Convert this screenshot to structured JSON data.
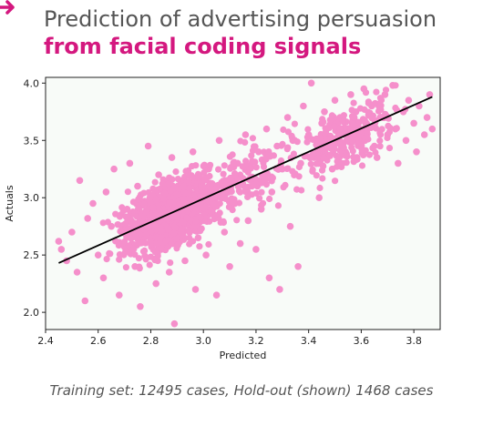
{
  "header": {
    "title_line1": "Prediction of advertising persuasion",
    "title_line2": "from facial coding signals"
  },
  "caption": "Training set: 12495 cases, Hold-out (shown) 1468 cases",
  "colors": {
    "accent": "#d4187f",
    "point": "#f58fcb",
    "fit_line": "#000000",
    "plot_background": "#f8fbf8",
    "title_gray": "#555555"
  },
  "chart_data": {
    "type": "scatter",
    "title": "",
    "xlabel": "Predicted",
    "ylabel": "Actuals",
    "xlim": [
      2.4,
      3.9
    ],
    "ylim": [
      1.85,
      4.05
    ],
    "xticks": [
      "2.4",
      "2.6",
      "2.8",
      "3.0",
      "3.2",
      "3.4",
      "3.6",
      "3.8"
    ],
    "yticks": [
      "2.0",
      "2.5",
      "3.0",
      "3.5",
      "4.0"
    ],
    "grid": false,
    "legend": "none",
    "fit_line": {
      "x": [
        2.45,
        3.87
      ],
      "y": [
        2.43,
        3.88
      ]
    },
    "n_points_shown": 1468,
    "points": [
      [
        2.45,
        2.62
      ],
      [
        2.46,
        2.55
      ],
      [
        2.48,
        2.45
      ],
      [
        2.5,
        2.7
      ],
      [
        2.52,
        2.35
      ],
      [
        2.53,
        3.15
      ],
      [
        2.55,
        2.1
      ],
      [
        2.56,
        2.82
      ],
      [
        2.58,
        2.95
      ],
      [
        2.6,
        2.5
      ],
      [
        2.62,
        2.3
      ],
      [
        2.63,
        3.05
      ],
      [
        2.65,
        2.75
      ],
      [
        2.66,
        3.25
      ],
      [
        2.68,
        2.15
      ],
      [
        2.7,
        2.6
      ],
      [
        2.71,
        2.9
      ],
      [
        2.72,
        3.3
      ],
      [
        2.74,
        2.4
      ],
      [
        2.75,
        3.1
      ],
      [
        2.76,
        2.05
      ],
      [
        2.78,
        2.7
      ],
      [
        2.79,
        3.45
      ],
      [
        2.8,
        2.85
      ],
      [
        2.82,
        2.25
      ],
      [
        2.83,
        3.2
      ],
      [
        2.84,
        2.55
      ],
      [
        2.86,
        3.0
      ],
      [
        2.87,
        2.35
      ],
      [
        2.88,
        3.35
      ],
      [
        2.89,
        1.9
      ],
      [
        2.9,
        2.75
      ],
      [
        2.92,
        3.15
      ],
      [
        2.93,
        2.45
      ],
      [
        2.94,
        2.95
      ],
      [
        2.96,
        3.4
      ],
      [
        2.97,
        2.2
      ],
      [
        2.98,
        2.65
      ],
      [
        3.0,
        3.05
      ],
      [
        3.01,
        2.5
      ],
      [
        3.02,
        3.25
      ],
      [
        3.04,
        2.85
      ],
      [
        3.05,
        2.15
      ],
      [
        3.06,
        3.5
      ],
      [
        3.08,
        2.7
      ],
      [
        3.09,
        3.1
      ],
      [
        3.1,
        2.4
      ],
      [
        3.12,
        2.95
      ],
      [
        3.13,
        3.3
      ],
      [
        3.14,
        2.6
      ],
      [
        3.16,
        3.55
      ],
      [
        3.17,
        2.8
      ],
      [
        3.18,
        3.15
      ],
      [
        3.2,
        2.55
      ],
      [
        3.21,
        3.4
      ],
      [
        3.22,
        2.9
      ],
      [
        3.24,
        3.6
      ],
      [
        3.25,
        2.3
      ],
      [
        3.26,
        3.05
      ],
      [
        3.28,
        3.45
      ],
      [
        3.29,
        2.2
      ],
      [
        3.3,
        3.25
      ],
      [
        3.32,
        3.7
      ],
      [
        3.33,
        2.75
      ],
      [
        3.34,
        3.5
      ],
      [
        3.36,
        2.4
      ],
      [
        3.37,
        3.3
      ],
      [
        3.38,
        3.8
      ],
      [
        3.4,
        3.55
      ],
      [
        3.41,
        4.0
      ],
      [
        3.42,
        3.35
      ],
      [
        3.44,
        3.0
      ],
      [
        3.45,
        3.65
      ],
      [
        3.46,
        3.75
      ],
      [
        3.48,
        3.45
      ],
      [
        3.49,
        3.25
      ],
      [
        3.5,
        3.85
      ],
      [
        3.52,
        3.6
      ],
      [
        3.53,
        3.7
      ],
      [
        3.54,
        3.4
      ],
      [
        3.56,
        3.9
      ],
      [
        3.57,
        3.55
      ],
      [
        3.58,
        3.75
      ],
      [
        3.6,
        3.5
      ],
      [
        3.61,
        3.95
      ],
      [
        3.62,
        3.65
      ],
      [
        3.64,
        3.8
      ],
      [
        3.65,
        3.45
      ],
      [
        3.66,
        3.35
      ],
      [
        3.68,
        3.7
      ],
      [
        3.69,
        3.9
      ],
      [
        3.7,
        3.55
      ],
      [
        3.72,
        3.98
      ],
      [
        3.73,
        3.6
      ],
      [
        3.74,
        3.3
      ],
      [
        3.76,
        3.75
      ],
      [
        3.77,
        3.5
      ],
      [
        3.78,
        3.85
      ],
      [
        3.8,
        3.65
      ],
      [
        3.81,
        3.4
      ],
      [
        3.82,
        3.8
      ],
      [
        3.84,
        3.55
      ],
      [
        3.85,
        3.7
      ],
      [
        3.86,
        3.9
      ],
      [
        3.87,
        3.6
      ]
    ]
  }
}
